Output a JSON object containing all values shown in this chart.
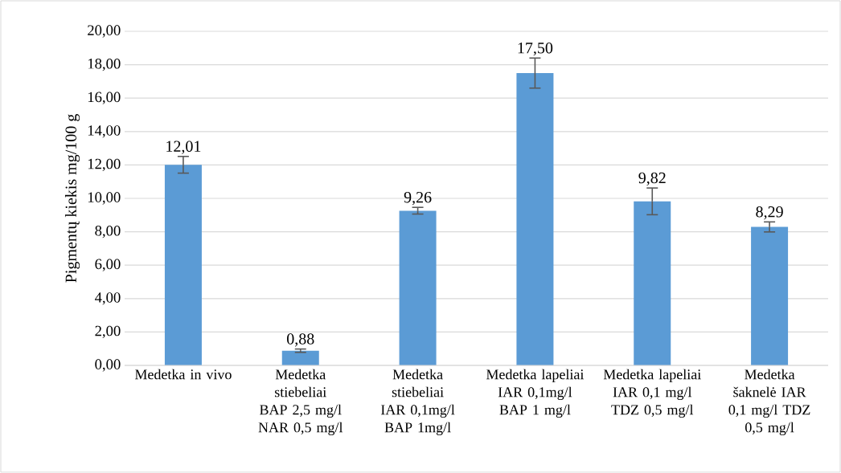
{
  "chart_data": {
    "type": "bar",
    "ylabel": "Pigmentų kiekis mg/100 g",
    "categories": [
      "Medetka in vivo",
      "Medetka stiebeliai BAP 2,5 mg/l NAR 0,5 mg/l",
      "Medetka stiebeliai IAR 0,1mg/l BAP 1mg/l",
      "Medetka lapeliai IAR 0,1mg/l BAP 1 mg/l",
      "Medetka lapeliai IAR 0,1 mg/l TDZ 0,5 mg/l",
      "Medetka šaknelė IAR 0,1 mg/l TDZ 0,5 mg/l"
    ],
    "values": [
      12.01,
      0.88,
      9.26,
      17.5,
      9.82,
      8.29
    ],
    "errors": [
      0.5,
      0.1,
      0.2,
      0.9,
      0.8,
      0.3
    ],
    "value_labels": [
      "12,01",
      "0,88",
      "9,26",
      "17,50",
      "9,82",
      "8,29"
    ],
    "color": "#5b9bd5",
    "ylim": [
      0,
      20
    ],
    "yticks": [
      {
        "value": 0,
        "label": "0,00"
      },
      {
        "value": 2,
        "label": "2,00"
      },
      {
        "value": 4,
        "label": "4,00"
      },
      {
        "value": 6,
        "label": "6,00"
      },
      {
        "value": 8,
        "label": "8,00"
      },
      {
        "value": 10,
        "label": "10,00"
      },
      {
        "value": 12,
        "label": "12,00"
      },
      {
        "value": 14,
        "label": "14,00"
      },
      {
        "value": 16,
        "label": "16,00"
      },
      {
        "value": 18,
        "label": "18,00"
      },
      {
        "value": 20,
        "label": "20,00"
      }
    ],
    "grid": "y"
  }
}
